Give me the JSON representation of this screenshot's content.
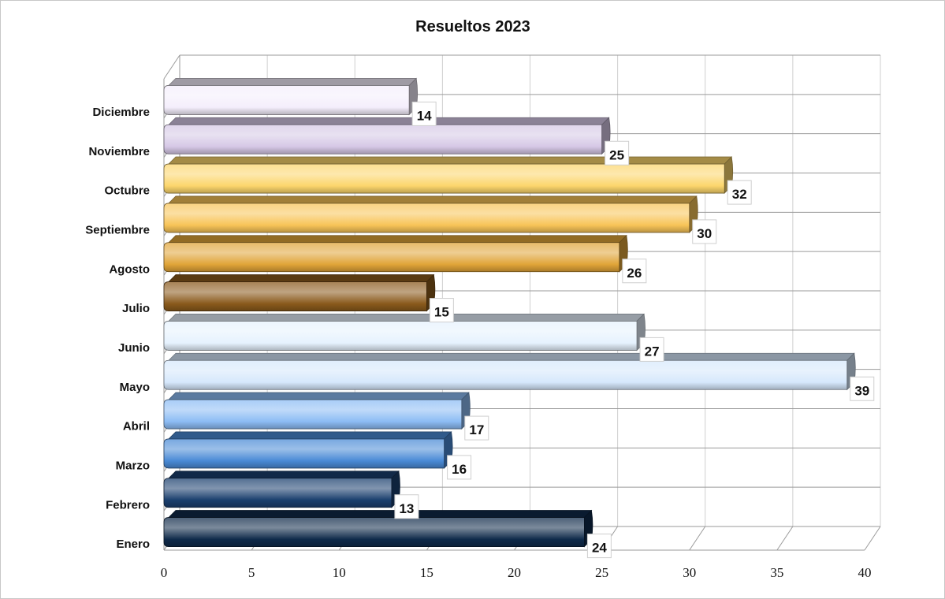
{
  "chart_data": {
    "type": "bar",
    "orientation": "horizontal",
    "style": "3d-cylinder",
    "title": "Resueltos 2023",
    "categories": [
      "Enero",
      "Febrero",
      "Marzo",
      "Abril",
      "Mayo",
      "Junio",
      "Julio",
      "Agosto",
      "Septiembre",
      "Octubre",
      "Noviembre",
      "Diciembre"
    ],
    "values": [
      24,
      13,
      16,
      17,
      39,
      27,
      15,
      26,
      30,
      32,
      25,
      14
    ],
    "xlim": [
      0,
      40
    ],
    "x_ticks": [
      "0",
      "5",
      "10",
      "15",
      "20",
      "25",
      "30",
      "35",
      "40"
    ],
    "grid": true,
    "data_labels": true,
    "bar_colors": [
      "#0f2a4a",
      "#1a3f6e",
      "#4a8ad6",
      "#8cbcf4",
      "#d6e8fc",
      "#e6f2fe",
      "#8a5a1c",
      "#e0a438",
      "#f8c458",
      "#fcd66c",
      "#d6c8e6",
      "#f4eefc"
    ]
  }
}
